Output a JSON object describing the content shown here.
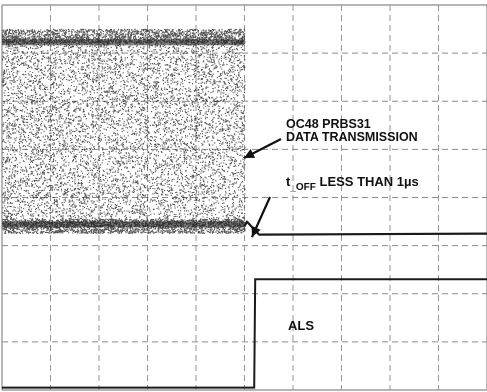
{
  "chart_data": {
    "type": "line",
    "title": "",
    "xlabel": "",
    "ylabel": "",
    "grid": true,
    "grid_divisions": {
      "x": 10,
      "y": 8
    },
    "xlim": [
      0,
      10
    ],
    "ylim": [
      0,
      8
    ],
    "series": [
      {
        "kind": "data-transmission",
        "high_level": 7.35,
        "low_level": 3.4,
        "off_level": 3.23,
        "on_until_div": 5.0,
        "x": [
          0,
          5.0,
          5.05,
          5.3,
          10
        ],
        "y": [
          5.4,
          5.4,
          3.5,
          3.23,
          3.25
        ]
      },
      {
        "kind": "ALS",
        "x": [
          0,
          5.2,
          5.22,
          10
        ],
        "y": [
          0.05,
          0.05,
          2.3,
          2.3
        ]
      }
    ],
    "annotations": [
      {
        "line1": "OC48 PRBS31",
        "line2": "DATA TRANSMISSION",
        "pointer": "data-transmission"
      },
      {
        "prefix": "t",
        "subscript": "_OFF",
        "suffix": " LESS THAN 1µs",
        "pointer": "t-off-edge"
      },
      {
        "text": "ALS",
        "pointer": "none"
      }
    ],
    "colors": {
      "trace": "#1a1a1a",
      "grid": "#8a8a8a",
      "background": "#ffffff"
    }
  }
}
